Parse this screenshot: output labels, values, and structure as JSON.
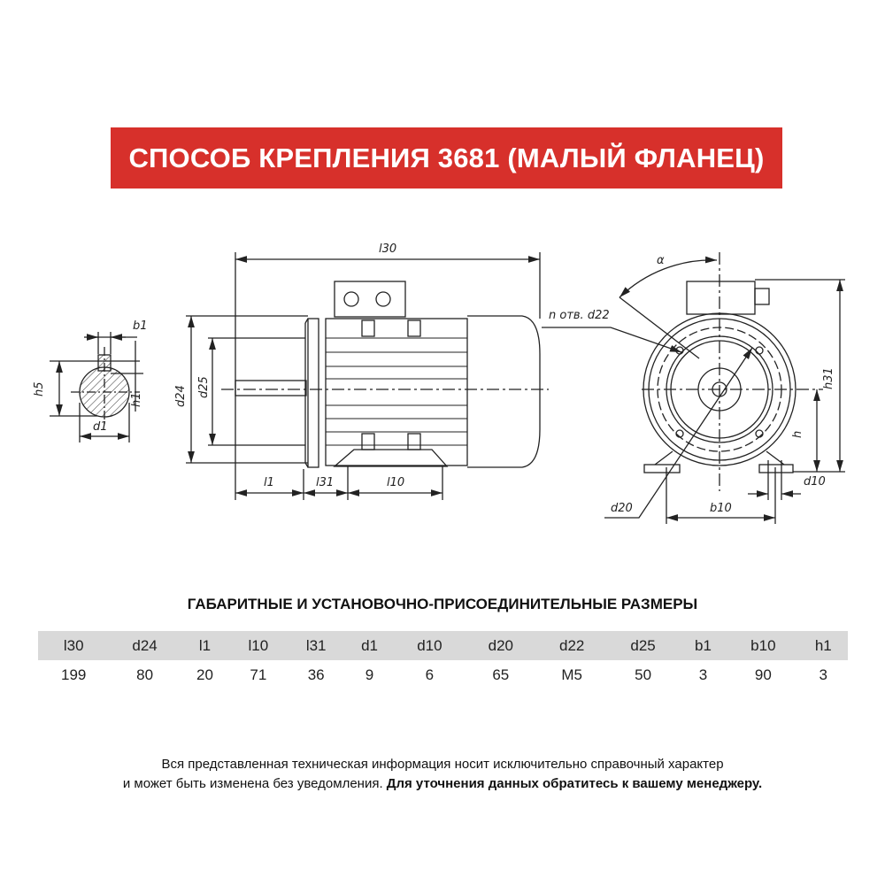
{
  "header": {
    "title": "СПОСОБ КРЕПЛЕНИЯ 3681 (МАЛЫЙ ФЛАНЕЦ)",
    "accent_color": "#d7302b"
  },
  "drawing": {
    "labels": {
      "l30": "l30",
      "b1": "b1",
      "h5": "h5",
      "h1": "h1",
      "d1": "d1",
      "d24": "d24",
      "d25": "d25",
      "l1": "l1",
      "l31": "l31",
      "l10": "l10",
      "alpha": "α",
      "n_d22": "n отв. d22",
      "h31": "h31",
      "h": "h",
      "d10": "d10",
      "d20": "d20",
      "b10": "b10"
    }
  },
  "table": {
    "title": "ГАБАРИТНЫЕ И УСТАНОВОЧНО-ПРИСОЕДИНИТЕЛЬНЫЕ РАЗМЕРЫ",
    "headers": [
      "l30",
      "d24",
      "l1",
      "l10",
      "l31",
      "d1",
      "d10",
      "d20",
      "d22",
      "d25",
      "b1",
      "b10",
      "h1"
    ],
    "values": [
      "199",
      "80",
      "20",
      "71",
      "36",
      "9",
      "6",
      "65",
      "M5",
      "50",
      "3",
      "90",
      "3"
    ]
  },
  "footer": {
    "line1": "Вся представленная техническая информация носит исключительно справочный характер",
    "line2_normal": "и может быть изменена без уведомления.",
    "line2_bold": "Для уточнения данных обратитесь к вашему менеджеру."
  }
}
